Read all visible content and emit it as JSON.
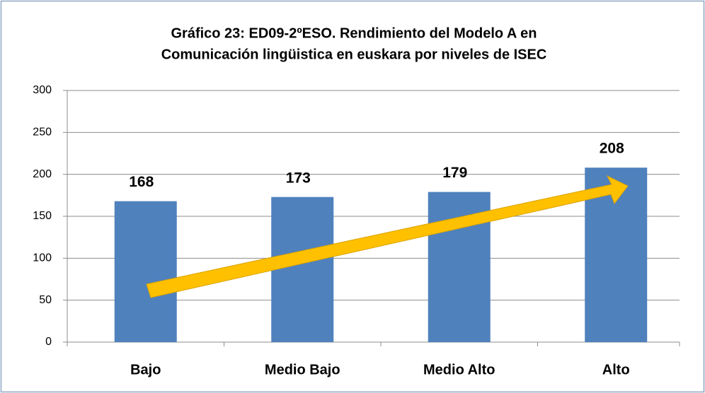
{
  "chart_data": {
    "type": "bar",
    "title": [
      "Gráfico 23: ED09-2ºESO. Rendimiento del Modelo A en",
      "Comunicación lingüistica en euskara por niveles de ISEC"
    ],
    "categories": [
      "Bajo",
      "Medio Bajo",
      "Medio Alto",
      "Alto"
    ],
    "values": [
      168,
      173,
      179,
      208
    ],
    "color": "#4f81bd",
    "ylim": [
      0,
      300
    ],
    "yticks": [
      0,
      50,
      100,
      150,
      200,
      250,
      300
    ],
    "grid": true
  }
}
